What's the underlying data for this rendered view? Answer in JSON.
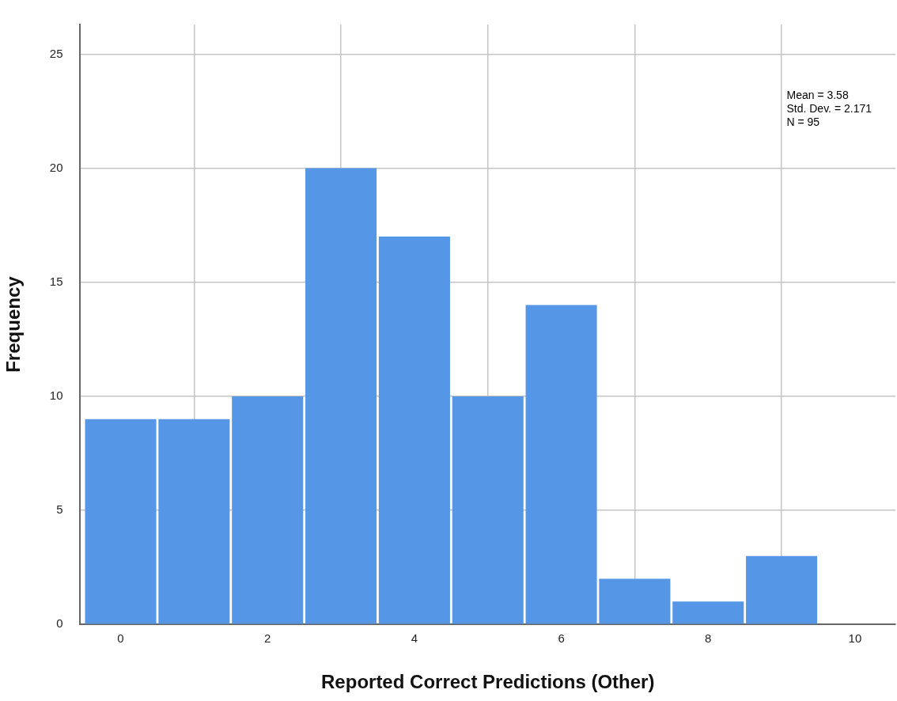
{
  "chart_data": {
    "type": "histogram",
    "xlabel": "Reported Correct Predictions (Other)",
    "ylabel": "Frequency",
    "bins": [
      -0.5,
      0.5,
      1.5,
      2.5,
      3.5,
      4.5,
      5.5,
      6.5,
      7.5,
      8.5,
      9.5
    ],
    "values": [
      9,
      9,
      10,
      20,
      17,
      10,
      14,
      2,
      1,
      3
    ],
    "color": "#5596e6",
    "xlim": [
      -0.55,
      10.55
    ],
    "xticks": [
      0,
      2,
      4,
      6,
      8,
      10
    ],
    "ylim": [
      0,
      26.3
    ],
    "yticks": [
      0,
      5,
      10,
      15,
      20,
      25
    ],
    "grid": true,
    "legend": false,
    "annotations": [
      "Mean = 3.58",
      "Std. Dev. = 2.171",
      "N = 95"
    ]
  }
}
